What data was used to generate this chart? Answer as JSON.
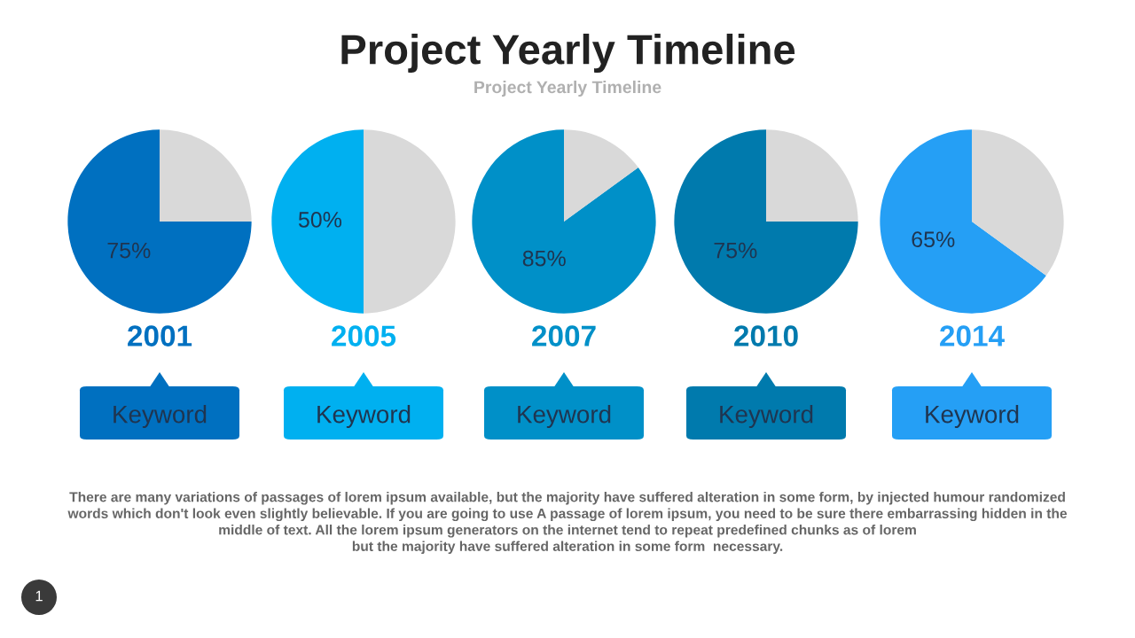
{
  "chart_data": [
    {
      "type": "pie",
      "categories": [
        null,
        null
      ],
      "values": [
        75,
        25
      ],
      "colors": [
        "#0070c0",
        "#d9d9d9"
      ],
      "value_labels": [
        "75%",
        null
      ],
      "xlabel": "2001",
      "annotations": [
        "Keyword"
      ]
    },
    {
      "type": "pie",
      "categories": [
        null,
        null
      ],
      "values": [
        50,
        50
      ],
      "colors": [
        "#00b0f0",
        "#d9d9d9"
      ],
      "value_labels": [
        "50%",
        null
      ],
      "xlabel": "2005",
      "annotations": [
        "Keyword"
      ]
    },
    {
      "type": "pie",
      "categories": [
        null,
        null
      ],
      "values": [
        85,
        15
      ],
      "colors": [
        "#0090c8",
        "#d9d9d9"
      ],
      "value_labels": [
        "85%",
        null
      ],
      "xlabel": "2007",
      "annotations": [
        "Keyword"
      ]
    },
    {
      "type": "pie",
      "categories": [
        null,
        null
      ],
      "values": [
        75,
        25
      ],
      "colors": [
        "#007aad",
        "#d9d9d9"
      ],
      "value_labels": [
        "75%",
        null
      ],
      "xlabel": "2010",
      "annotations": [
        "Keyword"
      ]
    },
    {
      "type": "pie",
      "categories": [
        null,
        null
      ],
      "values": [
        65,
        35
      ],
      "colors": [
        "#259ff5",
        "#d9d9d9"
      ],
      "value_labels": [
        "65%",
        null
      ],
      "xlabel": "2014",
      "annotations": [
        "Keyword"
      ]
    },
    {
      "type": "other",
      "title": "Project Yearly Timeline",
      "subtitle": "Project Yearly Timeline",
      "annotations": [
        "There are many variations of passages of lorem ipsum available, but the majority have suffered alteration in some form, by injected humour randomized\nwords which don't look even slightly believable. If you are going to use A passage of lorem ipsum, you need to be sure there embarrassing hidden in the\nmiddle of text. All the lorem ipsum generators on the internet tend to repeat predefined chunks as of lorem\nbut the majority have suffered alteration in some form  necessary.",
        "1"
      ]
    }
  ]
}
